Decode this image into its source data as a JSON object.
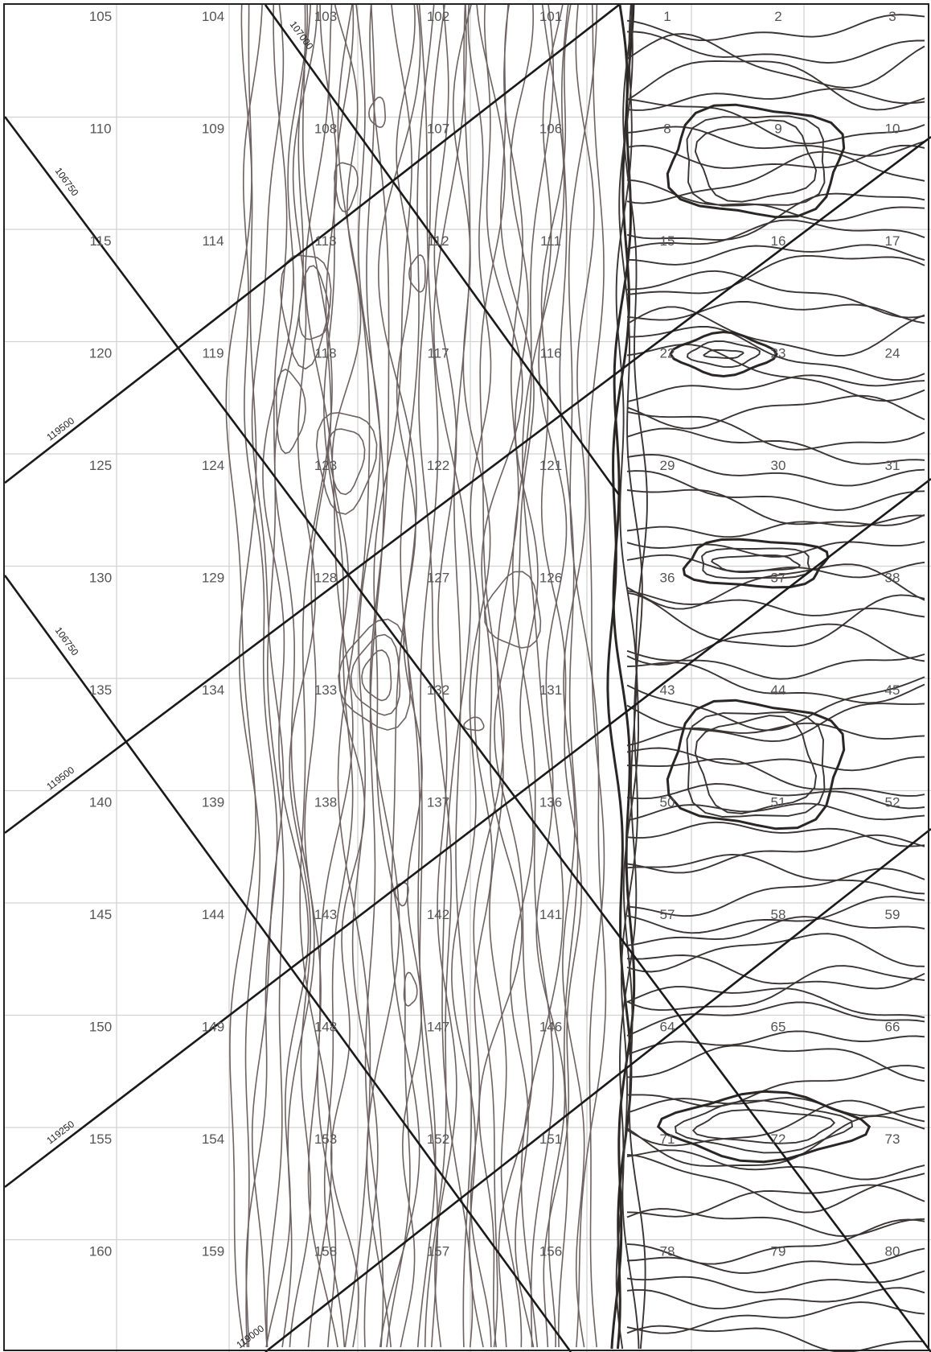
{
  "map": {
    "grid_labels": [
      [
        "105",
        "104",
        "103",
        "102",
        "101",
        "1",
        "2",
        "3"
      ],
      [
        "110",
        "109",
        "108",
        "107",
        "106",
        "8",
        "9",
        "10"
      ],
      [
        "115",
        "114",
        "113",
        "112",
        "111",
        "15",
        "16",
        "17"
      ],
      [
        "120",
        "119",
        "118",
        "117",
        "116",
        "22",
        "23",
        "24"
      ],
      [
        "125",
        "124",
        "123",
        "122",
        "121",
        "29",
        "30",
        "31"
      ],
      [
        "130",
        "129",
        "128",
        "127",
        "126",
        "36",
        "37",
        "38"
      ],
      [
        "135",
        "134",
        "133",
        "132",
        "131",
        "43",
        "44",
        "45"
      ],
      [
        "140",
        "139",
        "138",
        "137",
        "136",
        "50",
        "51",
        "52"
      ],
      [
        "145",
        "144",
        "143",
        "142",
        "141",
        "57",
        "58",
        "59"
      ],
      [
        "150",
        "149",
        "148",
        "147",
        "146",
        "64",
        "65",
        "66"
      ],
      [
        "155",
        "154",
        "153",
        "152",
        "151",
        "71",
        "72",
        "73"
      ],
      [
        "160",
        "159",
        "158",
        "157",
        "156",
        "78",
        "79",
        "80"
      ]
    ],
    "coordinate_labels": [
      "107000",
      "106750",
      "119500",
      "106750",
      "119500",
      "119250",
      "119000"
    ],
    "colors": {
      "grid": "#d2d2d2",
      "contour_left": "#6e6262",
      "contour_right": "#3a3434",
      "coordinate_lines": "#1a1a1a"
    }
  }
}
